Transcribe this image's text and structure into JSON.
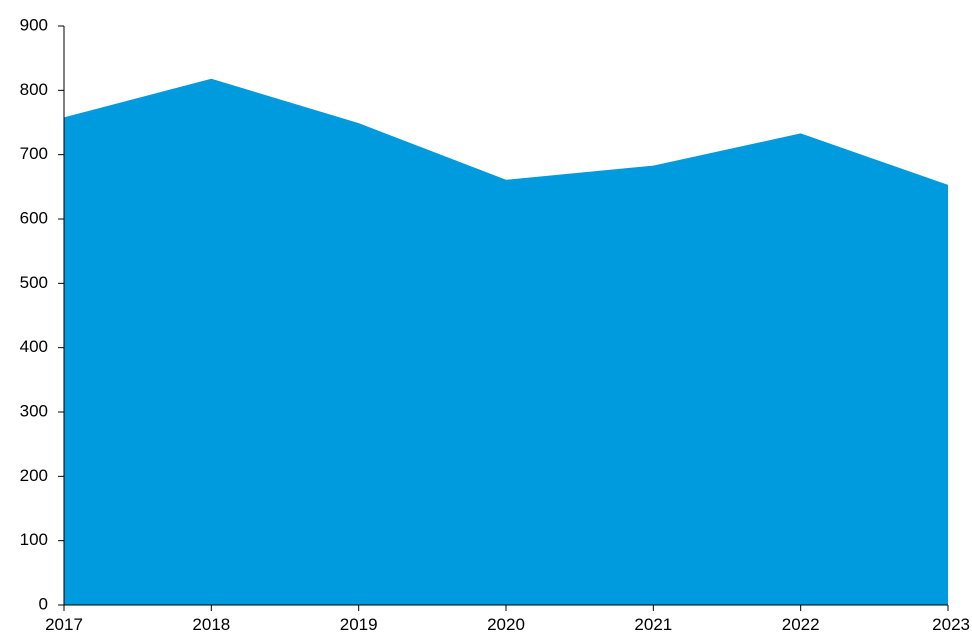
{
  "chart_data": {
    "type": "area",
    "x": [
      "2017",
      "2018",
      "2019",
      "2020",
      "2021",
      "2022",
      "2023"
    ],
    "series": [
      {
        "values": [
          758,
          818,
          749,
          661,
          683,
          733,
          653
        ]
      }
    ],
    "ylim": [
      0,
      900
    ],
    "yticks": [
      0,
      100,
      200,
      300,
      400,
      500,
      600,
      700,
      800,
      900
    ],
    "xticks": [
      "2017",
      "2018",
      "2019",
      "2020",
      "2021",
      "2022",
      "2023"
    ],
    "title": "",
    "xlabel": "",
    "ylabel": "",
    "grid": false,
    "legend": "none",
    "colors": {
      "fill": "#009ADE",
      "axis": "#000000"
    }
  }
}
